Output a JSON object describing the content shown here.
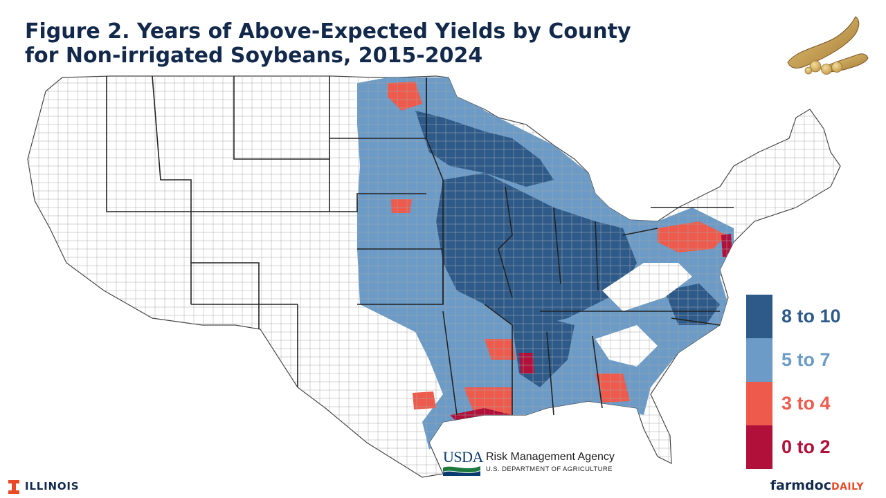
{
  "title": {
    "line1": "Figure 2. Years of Above-Expected Yields by County",
    "line2": "for Non-irrigated Soybeans, 2015-2024"
  },
  "legend": [
    {
      "label": "8 to 10",
      "color": "#2e5a8a",
      "text_color": "#2e5a8a"
    },
    {
      "label": "5 to 7",
      "color": "#6b9bc6",
      "text_color": "#6b9bc6"
    },
    {
      "label": "3 to 4",
      "color": "#ee5a4c",
      "text_color": "#ee5a4c"
    },
    {
      "label": "0 to 2",
      "color": "#b0103a",
      "text_color": "#b0103a"
    }
  ],
  "usda": {
    "wordmark": "USDA",
    "agency": "Risk Management Agency",
    "department": "U.S. DEPARTMENT OF AGRICULTURE"
  },
  "footer": {
    "university": "ILLINOIS",
    "brand_part1": "farmdoc",
    "brand_part2": "DAILY"
  },
  "icons": {
    "top_right": "soybean-pod-icon",
    "university_mark": "illinois-block-i-icon",
    "usda_mark": "usda-logo-icon"
  },
  "colors": {
    "title": "#13294b",
    "no_data": "#ffffff",
    "county_border": "#9a9a9a",
    "state_border": "#222222"
  }
}
